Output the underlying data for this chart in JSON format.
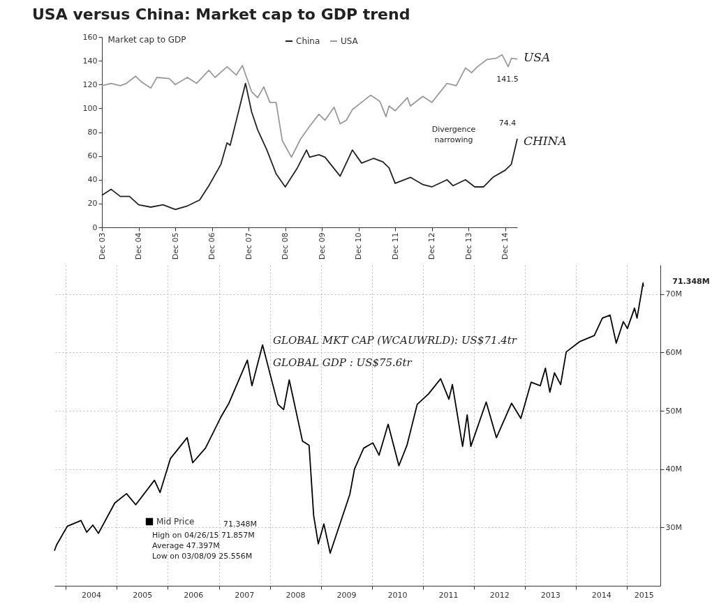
{
  "chart_data": [
    {
      "type": "line",
      "title": "USA versus China: Market cap to GDP trend",
      "ylabel": "Market cap to GDP",
      "legend": "top",
      "grid": false,
      "xlim": [
        "2003-12",
        "2015-04"
      ],
      "ylim": [
        0,
        160
      ],
      "yticks": [
        0,
        20,
        40,
        60,
        80,
        100,
        120,
        140,
        160
      ],
      "xticks": [
        {
          "value": "2003-12",
          "label": "Dec 03"
        },
        {
          "value": "2004-12",
          "label": "Dec 04"
        },
        {
          "value": "2005-12",
          "label": "Dec 05"
        },
        {
          "value": "2006-12",
          "label": "Dec 06"
        },
        {
          "value": "2007-12",
          "label": "Dec 07"
        },
        {
          "value": "2008-12",
          "label": "Dec 08"
        },
        {
          "value": "2009-12",
          "label": "Dec 09"
        },
        {
          "value": "2010-12",
          "label": "Dec 10"
        },
        {
          "value": "2011-12",
          "label": "Dec 11"
        },
        {
          "value": "2012-12",
          "label": "Dec 12"
        },
        {
          "value": "2013-12",
          "label": "Dec 13"
        },
        {
          "value": "2014-12",
          "label": "Dec 14"
        }
      ],
      "series": [
        {
          "name": "China",
          "color": "#222222",
          "x": [
            "2003-12",
            "2004-03",
            "2004-06",
            "2004-09",
            "2004-12",
            "2005-04",
            "2005-08",
            "2005-12",
            "2006-04",
            "2006-08",
            "2006-11",
            "2007-03",
            "2007-05",
            "2007-06",
            "2007-11",
            "2008-01",
            "2008-03",
            "2008-06",
            "2008-09",
            "2008-12",
            "2009-04",
            "2009-07",
            "2009-08",
            "2009-11",
            "2010-01",
            "2010-06",
            "2010-10",
            "2011-01",
            "2011-05",
            "2011-08",
            "2011-10",
            "2011-12",
            "2012-05",
            "2012-09",
            "2012-12",
            "2013-05",
            "2013-07",
            "2013-11",
            "2014-02",
            "2014-05",
            "2014-08",
            "2014-12",
            "2015-02",
            "2015-04"
          ],
          "values": [
            27,
            32,
            26,
            26,
            19,
            17,
            19,
            15,
            18,
            23,
            35,
            53,
            71,
            69,
            121,
            97,
            82,
            65,
            45,
            34,
            50,
            65,
            59,
            61,
            59,
            43,
            65,
            54,
            58,
            55,
            50,
            37,
            42,
            36,
            34,
            40,
            35,
            40,
            34,
            34,
            42,
            48,
            53,
            74.4
          ]
        },
        {
          "name": "USA",
          "color": "#9a9a9a",
          "x": [
            "2003-12",
            "2004-03",
            "2004-06",
            "2004-08",
            "2004-11",
            "2005-01",
            "2005-04",
            "2005-06",
            "2005-10",
            "2005-12",
            "2006-04",
            "2006-07",
            "2006-11",
            "2007-01",
            "2007-05",
            "2007-08",
            "2007-10",
            "2008-01",
            "2008-03",
            "2008-05",
            "2008-07",
            "2008-09",
            "2008-11",
            "2009-02",
            "2009-05",
            "2009-08",
            "2009-11",
            "2010-01",
            "2010-04",
            "2010-06",
            "2010-08",
            "2010-10",
            "2011-04",
            "2011-07",
            "2011-09",
            "2011-10",
            "2011-12",
            "2012-04",
            "2012-05",
            "2012-09",
            "2012-12",
            "2013-05",
            "2013-08",
            "2013-11",
            "2014-01",
            "2014-03",
            "2014-06",
            "2014-09",
            "2014-11",
            "2015-01",
            "2015-02",
            "2015-04"
          ],
          "values": [
            119,
            121,
            119,
            121,
            127,
            122,
            117,
            126,
            125,
            120,
            126,
            121,
            132,
            126,
            135,
            128,
            136,
            114,
            109,
            118,
            105,
            105,
            73,
            59,
            74,
            85,
            95,
            90,
            101,
            87,
            90,
            99,
            111,
            106,
            93,
            102,
            98,
            109,
            102,
            110,
            105,
            121,
            119,
            134,
            130,
            135,
            141,
            142,
            145,
            135,
            142,
            141.5
          ]
        }
      ],
      "annotations": [
        {
          "text": "141.5",
          "x": "2015-04",
          "y": 141.5
        },
        {
          "text": "74.4",
          "x": "2015-04",
          "y": 74.4
        },
        "Divergence narrowing",
        "USA",
        "CHINA"
      ]
    },
    {
      "type": "line",
      "legend": "bottom left",
      "grid": true,
      "xlim": [
        "2003-10-12",
        "2015-08-28"
      ],
      "y2lim": [
        20,
        75
      ],
      "y2ticks": [
        {
          "value": 30,
          "label": "30M"
        },
        {
          "value": 40,
          "label": "40M"
        },
        {
          "value": 50,
          "label": "50M"
        },
        {
          "value": 60,
          "label": "60M"
        },
        {
          "value": 70,
          "label": "70M"
        }
      ],
      "xticks": [
        {
          "value": "2004-01-01",
          "label": null
        },
        {
          "value": "2004-07-01",
          "label": "2004"
        },
        {
          "value": "2005-01-01",
          "label": null
        },
        {
          "value": "2005-07-01",
          "label": "2005"
        },
        {
          "value": "2006-01-01",
          "label": null
        },
        {
          "value": "2006-07-01",
          "label": "2006"
        },
        {
          "value": "2007-01-01",
          "label": null
        },
        {
          "value": "2007-07-01",
          "label": "2007"
        },
        {
          "value": "2008-01-01",
          "label": null
        },
        {
          "value": "2008-07-01",
          "label": "2008"
        },
        {
          "value": "2009-01-01",
          "label": null
        },
        {
          "value": "2009-07-01",
          "label": "2009"
        },
        {
          "value": "2010-01-01",
          "label": null
        },
        {
          "value": "2010-07-01",
          "label": "2010"
        },
        {
          "value": "2011-01-01",
          "label": null
        },
        {
          "value": "2011-07-01",
          "label": "2011"
        },
        {
          "value": "2012-01-01",
          "label": null
        },
        {
          "value": "2012-07-01",
          "label": "2012"
        },
        {
          "value": "2013-01-01",
          "label": null
        },
        {
          "value": "2013-07-01",
          "label": "2013"
        },
        {
          "value": "2014-01-01",
          "label": null
        },
        {
          "value": "2014-07-01",
          "label": "2014"
        },
        {
          "value": "2015-01-01",
          "label": null
        },
        {
          "value": "2015-05-01",
          "label": "2015"
        }
      ],
      "series": [
        {
          "name": "Mid Price",
          "color": "#000000",
          "axis": "y2",
          "x": [
            "2003-10-12",
            "2003-10-27",
            "2004-01-12",
            "2004-04-19",
            "2004-05-30",
            "2004-07-13",
            "2004-08-22",
            "2004-12-17",
            "2005-03-11",
            "2005-05-16",
            "2005-09-27",
            "2005-11-06",
            "2006-01-19",
            "2006-05-19",
            "2006-06-28",
            "2006-09-27",
            "2007-01-15",
            "2007-03-14",
            "2007-07-24",
            "2007-08-26",
            "2007-11-10",
            "2008-02-28",
            "2008-04-09",
            "2008-05-19",
            "2008-08-22",
            "2008-10-08",
            "2008-11-10",
            "2008-12-13",
            "2009-01-22",
            "2009-03-08",
            "2009-07-27",
            "2009-08-29",
            "2009-11-03",
            "2010-01-08",
            "2010-02-21",
            "2010-04-27",
            "2010-07-13",
            "2010-09-09",
            "2010-11-21",
            "2011-02-10",
            "2011-05-08",
            "2011-07-06",
            "2011-07-31",
            "2011-10-12",
            "2011-11-14",
            "2011-12-10",
            "2012-03-29",
            "2012-06-10",
            "2012-09-27",
            "2012-12-02",
            "2013-02-14",
            "2013-04-20",
            "2013-05-27",
            "2013-06-28",
            "2013-07-31",
            "2013-09-13",
            "2013-10-23",
            "2014-01-30",
            "2014-05-12",
            "2014-07-09",
            "2014-09-02",
            "2014-10-16",
            "2014-12-06",
            "2015-01-04",
            "2015-02-24",
            "2015-03-14",
            "2015-04-26",
            "2015-04-28"
          ],
          "values": [
            26,
            27,
            30.2,
            31.2,
            29.2,
            30.4,
            29.0,
            34.2,
            35.8,
            33.9,
            38.1,
            36.0,
            41.8,
            45.4,
            41.1,
            43.6,
            48.9,
            51.3,
            58.7,
            54.3,
            61.3,
            51.1,
            50.2,
            55.3,
            44.8,
            44.1,
            32.0,
            27.2,
            30.6,
            25.6,
            35.7,
            40,
            43.6,
            44.5,
            42.4,
            47.7,
            40.6,
            44.1,
            51.1,
            52.9,
            55.5,
            52.0,
            54.5,
            43.9,
            49.3,
            43.9,
            51.5,
            45.4,
            51.3,
            48.7,
            54.9,
            54.3,
            57.3,
            53.2,
            56.5,
            54.5,
            60.1,
            61.9,
            62.9,
            65.9,
            66.4,
            61.6,
            65.3,
            64.1,
            67.6,
            65.9,
            71.9,
            71.3
          ]
        }
      ],
      "annotations": [
        "71.348M",
        "71.348M",
        "High on 04/26/15 71.857M",
        "Average 47.397M",
        "Low on 03/08/09 25.556M",
        "GLOBAL MKT CAP (WCAUWRLD): US$71.4tr",
        "GLOBAL GDP : US$75.6tr"
      ]
    }
  ]
}
